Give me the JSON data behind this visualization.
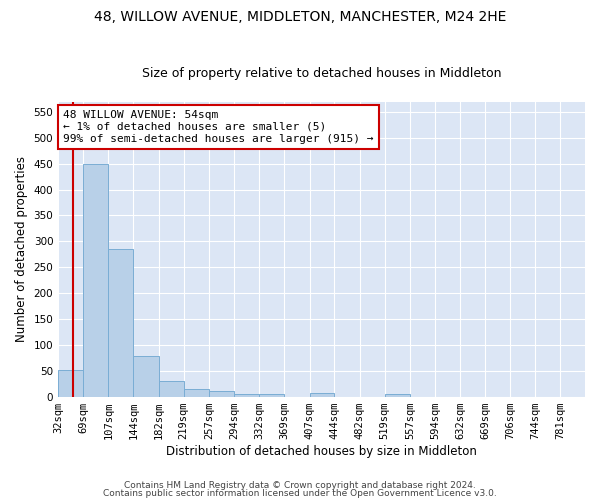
{
  "title": "48, WILLOW AVENUE, MIDDLETON, MANCHESTER, M24 2HE",
  "subtitle": "Size of property relative to detached houses in Middleton",
  "xlabel": "Distribution of detached houses by size in Middleton",
  "ylabel": "Number of detached properties",
  "footer_line1": "Contains HM Land Registry data © Crown copyright and database right 2024.",
  "footer_line2": "Contains public sector information licensed under the Open Government Licence v3.0.",
  "bin_labels": [
    "32sqm",
    "69sqm",
    "107sqm",
    "144sqm",
    "182sqm",
    "219sqm",
    "257sqm",
    "294sqm",
    "332sqm",
    "369sqm",
    "407sqm",
    "444sqm",
    "482sqm",
    "519sqm",
    "557sqm",
    "594sqm",
    "632sqm",
    "669sqm",
    "706sqm",
    "744sqm",
    "781sqm"
  ],
  "bar_values": [
    52,
    450,
    285,
    78,
    30,
    15,
    10,
    5,
    5,
    0,
    7,
    0,
    0,
    5,
    0,
    0,
    0,
    0,
    0,
    0,
    0
  ],
  "bin_edges": [
    32,
    69,
    107,
    144,
    182,
    219,
    257,
    294,
    332,
    369,
    407,
    444,
    482,
    519,
    557,
    594,
    632,
    669,
    706,
    744,
    781,
    818
  ],
  "bar_color": "#b8d0e8",
  "bar_edge_color": "#7aadd4",
  "red_line_x": 54,
  "annotation_text": "48 WILLOW AVENUE: 54sqm\n← 1% of detached houses are smaller (5)\n99% of semi-detached houses are larger (915) →",
  "annotation_box_color": "white",
  "annotation_border_color": "#cc0000",
  "red_line_color": "#cc0000",
  "ylim": [
    0,
    570
  ],
  "plot_bg_color": "#dce6f5",
  "fig_bg_color": "#ffffff",
  "grid_color": "white",
  "title_fontsize": 10,
  "subtitle_fontsize": 9,
  "axis_label_fontsize": 8.5,
  "tick_fontsize": 7.5,
  "annotation_fontsize": 8,
  "footer_fontsize": 6.5
}
